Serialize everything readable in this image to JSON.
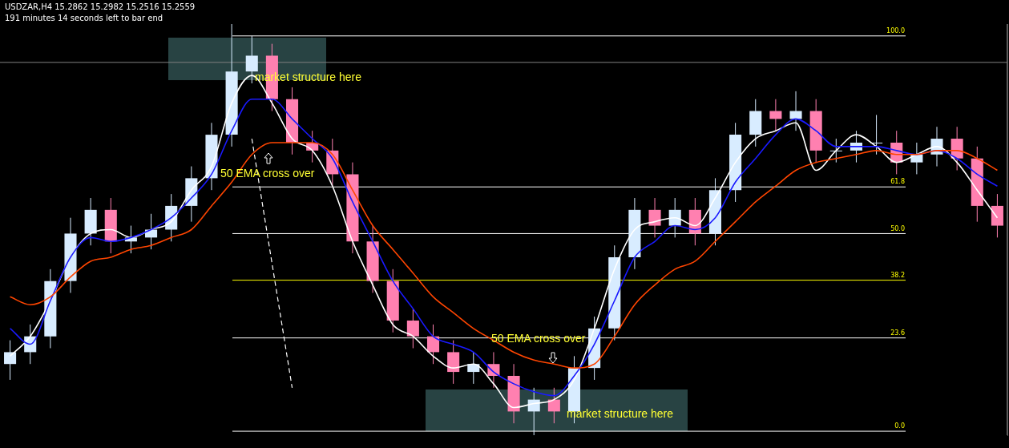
{
  "chart_data": {
    "type": "candlestick",
    "title": "USDZAR,H4  15.2862 15.2982 15.2516 15.2559",
    "subtitle": "191 minutes 14 seconds left to bar end",
    "ylim": [
      -1,
      103
    ],
    "tick_labels": "y",
    "yticks": [
      {
        "value": 0,
        "label": "0.0"
      },
      23.6,
      38.2,
      {
        "value": 50,
        "label": "50.0"
      },
      61.8,
      {
        "value": 100,
        "label": "100.0"
      }
    ],
    "grid": false,
    "legend": false,
    "categories": [
      null,
      null,
      null,
      null,
      null,
      null,
      null,
      null,
      null,
      null,
      null,
      null,
      null,
      null,
      null,
      null,
      null,
      null,
      null,
      null,
      null,
      null,
      null,
      null,
      null,
      null,
      null,
      null,
      null,
      null,
      null,
      null,
      null,
      null,
      null,
      null,
      null,
      null,
      null,
      null,
      null,
      null,
      null,
      null,
      null,
      null,
      null,
      null,
      null,
      null
    ],
    "ohlc": [
      [
        17,
        23,
        13,
        20
      ],
      [
        20,
        27,
        17,
        24
      ],
      [
        24,
        41,
        21,
        38
      ],
      [
        38,
        54,
        35,
        50
      ],
      [
        50,
        59,
        47,
        56
      ],
      [
        56,
        59,
        45,
        48
      ],
      [
        48,
        52,
        45,
        49
      ],
      [
        49,
        55,
        46,
        51
      ],
      [
        51,
        60,
        48,
        57
      ],
      [
        57,
        67,
        53,
        64
      ],
      [
        64,
        78,
        61,
        75
      ],
      [
        75,
        103,
        72,
        91
      ],
      [
        91,
        100,
        88,
        95
      ],
      [
        95,
        98,
        81,
        84
      ],
      [
        84,
        87,
        70,
        73
      ],
      [
        73,
        76,
        68,
        71
      ],
      [
        71,
        74,
        62,
        65
      ],
      [
        65,
        68,
        45,
        48
      ],
      [
        48,
        52,
        35,
        38
      ],
      [
        38,
        41,
        25,
        28
      ],
      [
        28,
        31,
        21,
        24
      ],
      [
        24,
        27,
        17,
        20
      ],
      [
        20,
        23,
        12,
        15
      ],
      [
        15,
        20,
        12,
        17
      ],
      [
        17,
        20,
        11,
        14
      ],
      [
        14,
        17,
        2,
        5
      ],
      [
        5,
        11,
        -1,
        8
      ],
      [
        8,
        11,
        2,
        5
      ],
      [
        5,
        19,
        2,
        16
      ],
      [
        16,
        29,
        13,
        26
      ],
      [
        26,
        47,
        23,
        44
      ],
      [
        44,
        59,
        41,
        56
      ],
      [
        56,
        59,
        49,
        52
      ],
      [
        52,
        59,
        49,
        56
      ],
      [
        56,
        59,
        47,
        50
      ],
      [
        50,
        64,
        47,
        61
      ],
      [
        61,
        78,
        58,
        75
      ],
      [
        75,
        84,
        72,
        81
      ],
      [
        81,
        84,
        76,
        79
      ],
      [
        79,
        86,
        76,
        81
      ],
      [
        81,
        84,
        68,
        71
      ],
      [
        71,
        74,
        68,
        71
      ],
      [
        71,
        76,
        68,
        73
      ],
      [
        73,
        80,
        70,
        73
      ],
      [
        73,
        76,
        65,
        68
      ],
      [
        68,
        73,
        65,
        70
      ],
      [
        70,
        77,
        67,
        74
      ],
      [
        74,
        77,
        66,
        69
      ],
      [
        69,
        72,
        53,
        57
      ],
      [
        57,
        60,
        49,
        52
      ]
    ],
    "colors": [
      "#d8ecff",
      "#d8ecff",
      "#d8ecff",
      "#d8ecff",
      "#d8ecff",
      "#ff80b0",
      "#d8ecff",
      "#d8ecff",
      "#d8ecff",
      "#d8ecff",
      "#d8ecff",
      "#d8ecff",
      "#d8ecff",
      "#ff80b0",
      "#ff80b0",
      "#ff80b0",
      "#ff80b0",
      "#ff80b0",
      "#ff80b0",
      "#ff80b0",
      "#ff80b0",
      "#ff80b0",
      "#ff80b0",
      "#d8ecff",
      "#ff80b0",
      "#ff80b0",
      "#d8ecff",
      "#ff80b0",
      "#d8ecff",
      "#d8ecff",
      "#d8ecff",
      "#d8ecff",
      "#ff80b0",
      "#d8ecff",
      "#ff80b0",
      "#d8ecff",
      "#d8ecff",
      "#d8ecff",
      "#ff80b0",
      "#d8ecff",
      "#ff80b0",
      "#d8ecff",
      "#d8ecff",
      "#d8ecff",
      "#ff80b0",
      "#d8ecff",
      "#d8ecff",
      "#ff80b0",
      "#ff80b0",
      "#ff80b0"
    ],
    "series": [
      {
        "type": "line",
        "color": "#ff4500",
        "values": [
          34,
          32,
          34,
          39,
          43,
          44,
          46,
          47,
          49,
          51,
          57,
          63,
          70,
          73,
          73,
          73,
          70,
          61,
          52,
          46,
          40,
          34,
          30,
          26,
          23,
          20,
          18,
          17,
          16,
          17,
          24,
          32,
          37,
          41,
          43,
          48,
          53,
          58,
          62,
          66,
          68,
          69,
          70,
          71,
          70,
          70,
          71,
          71,
          69,
          66
        ]
      },
      {
        "type": "line",
        "color": "#1a1aff",
        "values": [
          26,
          22,
          33,
          44,
          49,
          48,
          49,
          51,
          54,
          59,
          65,
          76,
          84,
          84,
          79,
          74,
          69,
          58,
          48,
          38,
          31,
          24,
          22,
          20,
          15,
          12,
          10,
          9,
          14,
          22,
          33,
          44,
          48,
          52,
          51,
          54,
          63,
          69,
          75,
          79,
          76,
          72,
          72,
          72,
          71,
          70,
          71,
          69,
          65,
          62
        ]
      },
      {
        "type": "line",
        "color": "#ffffff",
        "values": [
          19,
          24,
          33,
          44,
          50,
          51,
          49,
          51,
          53,
          61,
          67,
          83,
          90,
          83,
          74,
          71,
          62,
          48,
          37,
          27,
          24,
          19,
          16,
          17,
          12,
          6,
          7,
          8,
          13,
          26,
          41,
          51,
          53,
          54,
          52,
          59,
          68,
          74,
          76,
          78,
          66,
          71,
          75,
          72,
          68,
          70,
          72,
          68,
          61,
          54
        ]
      },
      {
        "type": "line",
        "color": "#ffffff",
        "line_style": "dashed",
        "values": [
          null,
          null,
          null,
          null,
          null,
          null,
          null,
          null,
          null,
          null,
          null,
          null,
          74,
          null,
          11,
          null,
          null,
          null,
          null,
          null,
          null,
          null,
          null,
          null,
          null,
          null,
          null,
          null,
          null,
          null,
          null,
          null,
          null,
          null,
          null,
          null,
          null,
          null,
          null,
          null,
          null,
          null,
          null,
          null,
          null,
          null,
          null,
          null,
          null,
          null
        ]
      }
    ],
    "ref_lines": [
      {
        "axis": "y",
        "value": 93.3,
        "label": null,
        "color": "#808080"
      },
      {
        "axis": "y",
        "value": 100,
        "label": null,
        "color": "#ffffff",
        "line_style": "solid"
      },
      {
        "axis": "y",
        "value": 61.8,
        "label": null,
        "color": "#ffffff",
        "line_style": "solid"
      },
      {
        "axis": "y",
        "value": 50,
        "label": null,
        "color": "#ffffff",
        "line_style": "solid"
      },
      {
        "axis": "y",
        "value": 38.2,
        "label": null,
        "color": "#ffff00",
        "line_style": "solid"
      },
      {
        "axis": "y",
        "value": 23.6,
        "label": null,
        "color": "#ffffff",
        "line_style": "solid"
      },
      {
        "axis": "y",
        "value": 0,
        "label": null,
        "color": "#ffffff",
        "line_style": "solid"
      }
    ],
    "annotations": [
      "market structure here",
      "50 EMA cross over",
      "50 EMA cross over",
      "market structure here"
    ]
  }
}
